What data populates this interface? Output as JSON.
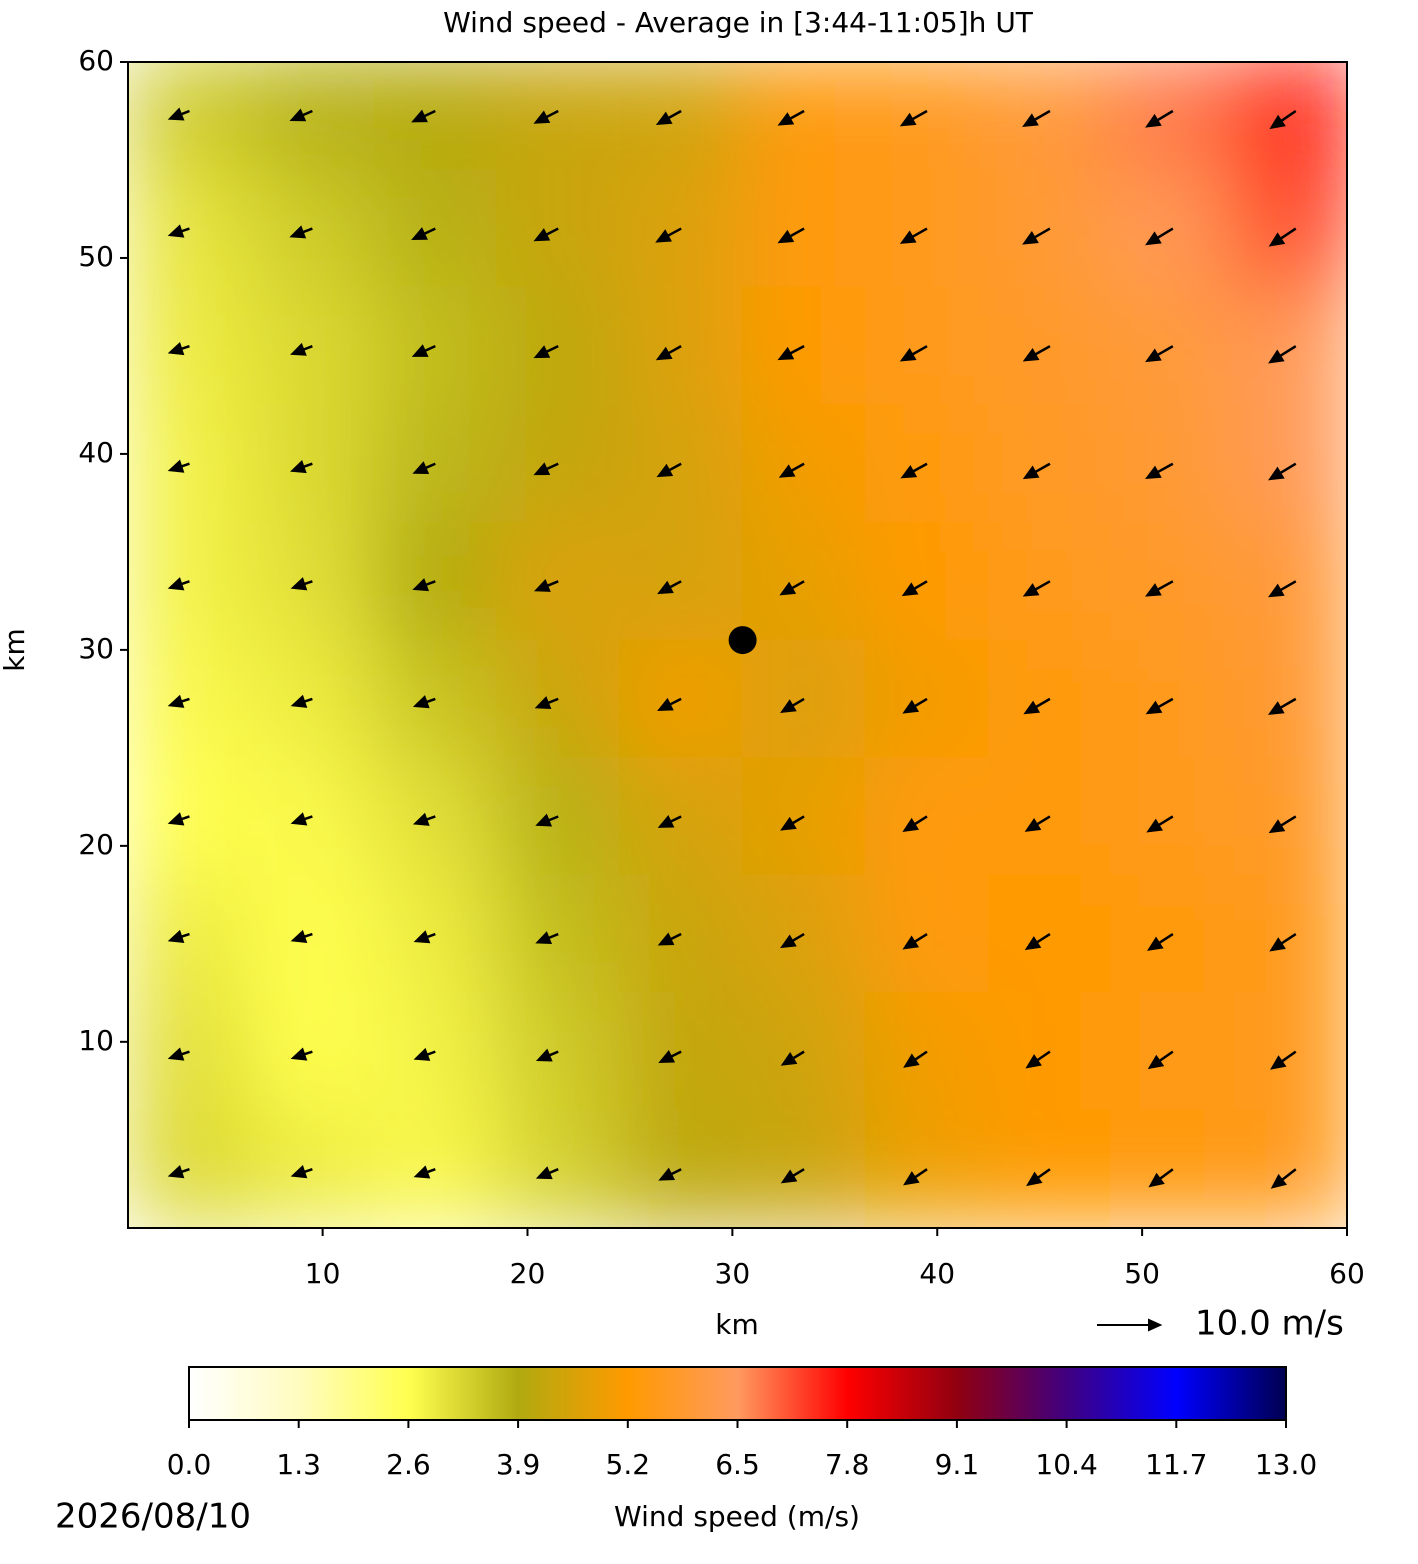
{
  "chart_data": {
    "type": "quiver",
    "title": "Wind speed - Average in [3:44-11:05]h UT",
    "x_label": "km",
    "y_label": "km",
    "xlim": [
      0.5,
      60
    ],
    "ylim": [
      0.5,
      60
    ],
    "xticks": [
      10,
      20,
      30,
      40,
      50,
      60
    ],
    "yticks": [
      10,
      20,
      30,
      40,
      50,
      60
    ],
    "x": [
      3.5,
      9.5,
      15.5,
      21.5,
      27.5,
      33.5,
      39.5,
      45.5,
      51.5,
      57.5
    ],
    "y": [
      57.5,
      51.5,
      45.5,
      39.5,
      33.5,
      27.5,
      21.5,
      15.5,
      9.5,
      3.5
    ],
    "speed": [
      [
        3.4,
        3.8,
        4.0,
        4.3,
        4.4,
        5.3,
        5.6,
        6.0,
        6.8,
        7.5
      ],
      [
        3.0,
        3.4,
        3.8,
        4.3,
        4.6,
        5.3,
        5.6,
        5.9,
        6.4,
        7.2
      ],
      [
        2.9,
        3.2,
        3.6,
        4.1,
        4.6,
        5.2,
        5.6,
        5.8,
        6.0,
        6.4
      ],
      [
        2.8,
        3.2,
        3.7,
        4.2,
        4.5,
        5.0,
        5.4,
        5.7,
        5.9,
        6.4
      ],
      [
        2.8,
        3.1,
        3.9,
        4.6,
        4.5,
        4.8,
        5.2,
        5.6,
        5.8,
        6.0
      ],
      [
        2.7,
        2.9,
        3.5,
        4.3,
        5.0,
        4.6,
        5.0,
        5.4,
        5.6,
        5.9
      ],
      [
        2.6,
        2.7,
        3.1,
        3.8,
        4.5,
        4.8,
        5.4,
        5.3,
        5.6,
        5.8
      ],
      [
        2.9,
        2.6,
        2.9,
        3.6,
        4.3,
        4.6,
        5.4,
        5.2,
        5.4,
        5.6
      ],
      [
        3.1,
        2.6,
        2.8,
        3.4,
        4.2,
        4.4,
        5.0,
        5.2,
        5.5,
        5.6
      ],
      [
        3.2,
        2.9,
        2.7,
        3.3,
        4.1,
        4.3,
        4.9,
        5.2,
        5.4,
        5.6
      ]
    ],
    "u": [
      [
        -3.0,
        -3.2,
        -3.4,
        -3.5,
        -3.6,
        -3.8,
        -3.9,
        -4.0,
        -4.0,
        -3.8
      ],
      [
        -3.0,
        -3.2,
        -3.4,
        -3.5,
        -3.7,
        -3.8,
        -3.9,
        -4.0,
        -4.0,
        -3.9
      ],
      [
        -3.0,
        -3.1,
        -3.3,
        -3.5,
        -3.6,
        -3.8,
        -3.9,
        -3.9,
        -4.0,
        -4.0
      ],
      [
        -3.0,
        -3.1,
        -3.2,
        -3.5,
        -3.5,
        -3.6,
        -3.8,
        -3.9,
        -4.0,
        -4.0
      ],
      [
        -3.0,
        -3.0,
        -3.2,
        -3.4,
        -3.4,
        -3.5,
        -3.6,
        -3.9,
        -4.0,
        -4.0
      ],
      [
        -3.0,
        -3.0,
        -3.1,
        -3.3,
        -3.4,
        -3.4,
        -3.5,
        -3.8,
        -3.9,
        -4.0
      ],
      [
        -3.0,
        -3.0,
        -3.1,
        -3.2,
        -3.3,
        -3.4,
        -3.5,
        -3.6,
        -3.8,
        -3.9
      ],
      [
        -3.0,
        -3.0,
        -3.0,
        -3.2,
        -3.3,
        -3.4,
        -3.5,
        -3.6,
        -3.7,
        -3.8
      ],
      [
        -3.0,
        -3.0,
        -3.0,
        -3.1,
        -3.2,
        -3.3,
        -3.4,
        -3.5,
        -3.6,
        -3.7
      ],
      [
        -3.0,
        -3.0,
        -3.0,
        -3.1,
        -3.2,
        -3.3,
        -3.4,
        -3.4,
        -3.5,
        -3.6
      ]
    ],
    "v": [
      [
        -1.2,
        -1.4,
        -1.6,
        -1.8,
        -2.0,
        -2.1,
        -2.2,
        -2.3,
        -2.4,
        -2.6
      ],
      [
        -1.0,
        -1.2,
        -1.6,
        -1.8,
        -2.0,
        -2.1,
        -2.2,
        -2.3,
        -2.4,
        -2.6
      ],
      [
        -1.0,
        -1.2,
        -1.5,
        -1.7,
        -2.0,
        -2.0,
        -2.2,
        -2.2,
        -2.3,
        -2.5
      ],
      [
        -1.0,
        -1.1,
        -1.4,
        -1.6,
        -1.9,
        -2.0,
        -2.1,
        -2.2,
        -2.2,
        -2.4
      ],
      [
        -1.0,
        -1.0,
        -1.2,
        -1.4,
        -1.8,
        -2.0,
        -2.1,
        -2.2,
        -2.2,
        -2.3
      ],
      [
        -1.0,
        -1.0,
        -1.1,
        -1.3,
        -1.7,
        -2.0,
        -2.1,
        -2.2,
        -2.2,
        -2.3
      ],
      [
        -1.0,
        -1.0,
        -1.1,
        -1.3,
        -1.6,
        -2.0,
        -2.2,
        -2.2,
        -2.3,
        -2.4
      ],
      [
        -1.0,
        -1.0,
        -1.1,
        -1.3,
        -1.6,
        -2.0,
        -2.2,
        -2.3,
        -2.4,
        -2.5
      ],
      [
        -1.0,
        -1.0,
        -1.1,
        -1.3,
        -1.6,
        -2.0,
        -2.3,
        -2.4,
        -2.5,
        -2.6
      ],
      [
        -1.0,
        -1.0,
        -1.1,
        -1.3,
        -1.6,
        -2.0,
        -2.3,
        -2.4,
        -2.6,
        -2.8
      ]
    ],
    "marker": {
      "x": 30.5,
      "y": 30.5
    },
    "quiver_key": {
      "value": 10,
      "label": "10.0 m/s"
    },
    "colorbar": {
      "label": "Wind speed (m/s)",
      "clim": [
        0,
        13
      ],
      "ticks": [
        {
          "value": 0,
          "label": "0.0"
        },
        1.3,
        2.6,
        3.9,
        5.2,
        6.5,
        7.8,
        9.1,
        10.4,
        11.7,
        {
          "value": 13,
          "label": "13.0"
        }
      ],
      "colormap": [
        "#ffffff",
        "#fffcc0",
        "#ffff50",
        "#b0aa10",
        "#ff9a00",
        "#ff9a60",
        "#ff0000",
        "#900010",
        "#400080",
        "#0000ff",
        "#000050"
      ]
    },
    "date": "2026/08/10"
  }
}
